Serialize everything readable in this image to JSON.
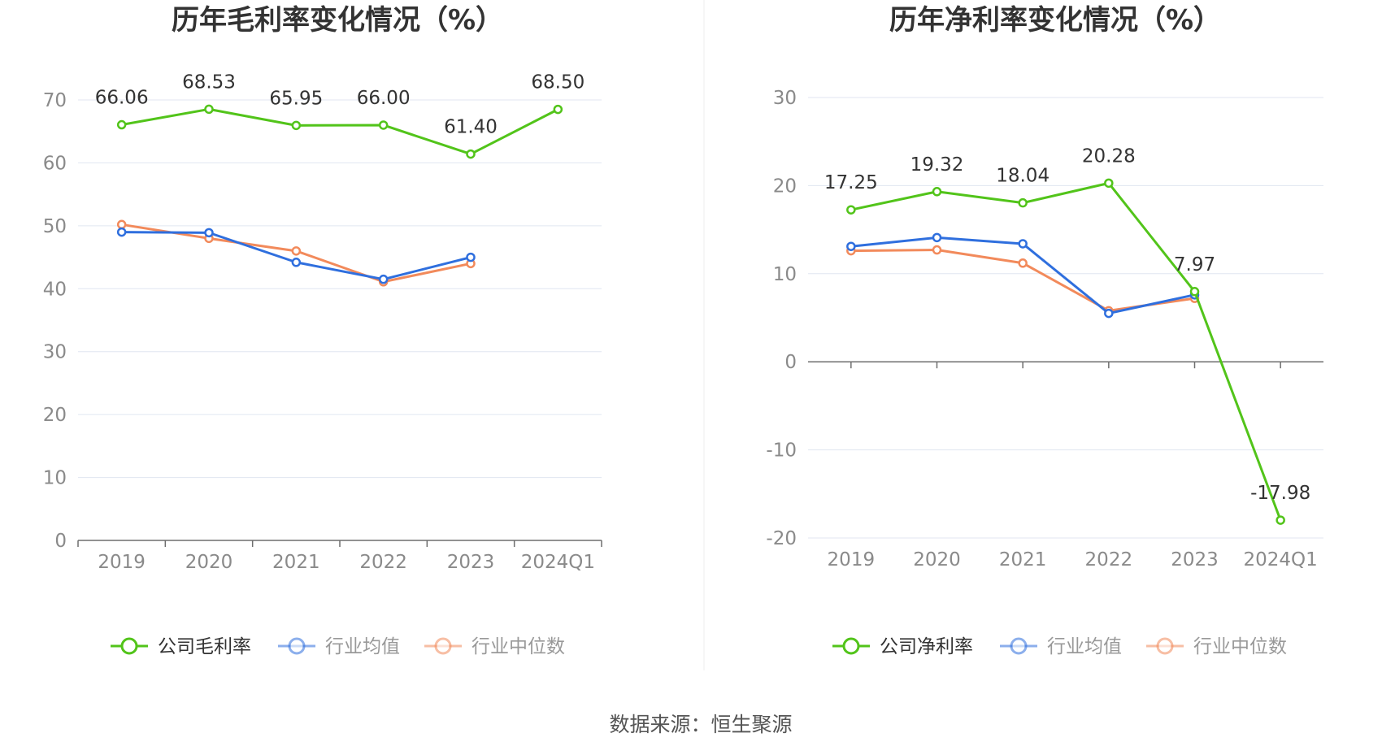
{
  "chart_data": [
    {
      "type": "line",
      "title": "历年毛利率变化情况（%）",
      "categories": [
        "2019",
        "2020",
        "2021",
        "2022",
        "2023",
        "2024Q1"
      ],
      "ylim": [
        0,
        70
      ],
      "yticks": [
        "0",
        "10",
        "20",
        "30",
        "40",
        "50",
        "60",
        "70"
      ],
      "grid": true,
      "legend_position": "bottom",
      "series": [
        {
          "name": "公司毛利率",
          "color": "#52c41a",
          "values": [
            66.06,
            68.53,
            65.95,
            66.0,
            61.4,
            68.5
          ],
          "labels": [
            "66.06",
            "68.53",
            "65.95",
            "66.00",
            "61.40",
            "68.50"
          ]
        },
        {
          "name": "行业均值",
          "color": "#2f6fde",
          "values": [
            49.0,
            48.9,
            44.2,
            41.5,
            45.0,
            null
          ]
        },
        {
          "name": "行业中位数",
          "color": "#f28a5b",
          "values": [
            50.2,
            48.0,
            46.0,
            41.1,
            44.0,
            null
          ]
        }
      ]
    },
    {
      "type": "line",
      "title": "历年净利率变化情况（%）",
      "categories": [
        "2019",
        "2020",
        "2021",
        "2022",
        "2023",
        "2024Q1"
      ],
      "ylim": [
        -20,
        30
      ],
      "yticks": [
        "-20",
        "-10",
        "0",
        "10",
        "20",
        "30"
      ],
      "grid": true,
      "legend_position": "bottom",
      "series": [
        {
          "name": "公司净利率",
          "color": "#52c41a",
          "values": [
            17.25,
            19.32,
            18.04,
            20.28,
            7.97,
            -17.98
          ],
          "labels": [
            "17.25",
            "19.32",
            "18.04",
            "20.28",
            "7.97",
            "-17.98"
          ]
        },
        {
          "name": "行业均值",
          "color": "#2f6fde",
          "values": [
            13.1,
            14.1,
            13.4,
            5.5,
            7.6,
            null
          ]
        },
        {
          "name": "行业中位数",
          "color": "#f28a5b",
          "values": [
            12.6,
            12.7,
            11.2,
            5.8,
            7.2,
            null
          ]
        }
      ]
    }
  ],
  "footer": {
    "source": "数据来源：恒生聚源"
  }
}
